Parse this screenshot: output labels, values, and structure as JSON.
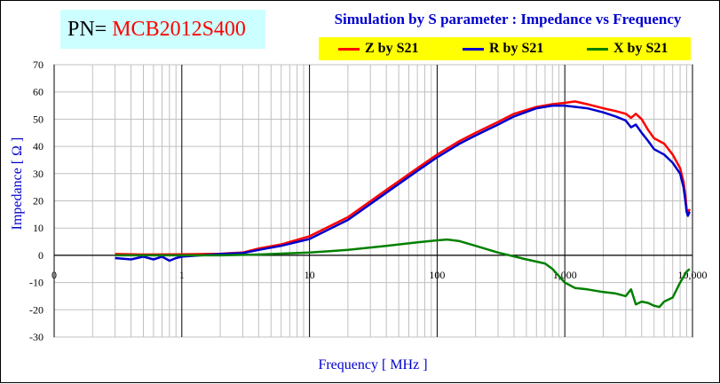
{
  "part_number": {
    "label": "PN=",
    "value": "MCB2012S400"
  },
  "chart_data": {
    "type": "line",
    "title": "Simulation by S parameter : Impedance vs Frequency",
    "xlabel": "Frequency [ MHz ]",
    "ylabel": "Impedance [ Ω ]",
    "xscale": "log",
    "xlim": [
      0.1,
      10000
    ],
    "ylim": [
      -30,
      70
    ],
    "ytick_step": 10,
    "grid": true,
    "legend_position": "top-right",
    "x_tick_labels": [
      "0",
      "1",
      "10",
      "100",
      "1,000",
      "10,000"
    ],
    "y_tick_labels": [
      "70",
      "60",
      "50",
      "40",
      "30",
      "20",
      "10",
      "0",
      "-10",
      "-20",
      "-30"
    ],
    "series": [
      {
        "name": "Z by S21",
        "color": "#ff0000",
        "points": [
          [
            0.3,
            0.5
          ],
          [
            0.5,
            0.3
          ],
          [
            1,
            0.4
          ],
          [
            2,
            0.6
          ],
          [
            3,
            1
          ],
          [
            4,
            2.5
          ],
          [
            6,
            4
          ],
          [
            10,
            7
          ],
          [
            20,
            14
          ],
          [
            40,
            24
          ],
          [
            70,
            32
          ],
          [
            100,
            37
          ],
          [
            150,
            42
          ],
          [
            200,
            45
          ],
          [
            300,
            49
          ],
          [
            400,
            52
          ],
          [
            600,
            54.5
          ],
          [
            800,
            55.5
          ],
          [
            1000,
            56
          ],
          [
            1200,
            56.5
          ],
          [
            1500,
            55.5
          ],
          [
            2000,
            54
          ],
          [
            2500,
            53
          ],
          [
            3000,
            52
          ],
          [
            3300,
            50.5
          ],
          [
            3600,
            52
          ],
          [
            4000,
            50
          ],
          [
            4500,
            46
          ],
          [
            5000,
            43
          ],
          [
            6000,
            41
          ],
          [
            7000,
            37
          ],
          [
            8000,
            32
          ],
          [
            8500,
            27
          ],
          [
            8800,
            22
          ],
          [
            9000,
            17
          ],
          [
            9200,
            15.5
          ],
          [
            9500,
            17
          ]
        ]
      },
      {
        "name": "R by S21",
        "color": "#0000cc",
        "points": [
          [
            0.3,
            -1
          ],
          [
            0.4,
            -1.5
          ],
          [
            0.5,
            -0.5
          ],
          [
            0.6,
            -1.5
          ],
          [
            0.7,
            -0.5
          ],
          [
            0.8,
            -2
          ],
          [
            0.9,
            -1
          ],
          [
            1,
            -0.5
          ],
          [
            2,
            0.5
          ],
          [
            3,
            0.8
          ],
          [
            4,
            2
          ],
          [
            6,
            3.5
          ],
          [
            10,
            6
          ],
          [
            20,
            13
          ],
          [
            40,
            23
          ],
          [
            70,
            31
          ],
          [
            100,
            36
          ],
          [
            150,
            41
          ],
          [
            200,
            44
          ],
          [
            300,
            48
          ],
          [
            400,
            51
          ],
          [
            600,
            54
          ],
          [
            800,
            55
          ],
          [
            1000,
            55
          ],
          [
            1500,
            54
          ],
          [
            2000,
            52.5
          ],
          [
            2500,
            51
          ],
          [
            3000,
            49.5
          ],
          [
            3300,
            47
          ],
          [
            3600,
            48
          ],
          [
            4000,
            45
          ],
          [
            4500,
            42
          ],
          [
            5000,
            39
          ],
          [
            6000,
            37
          ],
          [
            7000,
            34
          ],
          [
            8000,
            30
          ],
          [
            8500,
            25
          ],
          [
            8800,
            20
          ],
          [
            9000,
            16
          ],
          [
            9200,
            14.5
          ],
          [
            9500,
            16
          ]
        ]
      },
      {
        "name": "X by S21",
        "color": "#008000",
        "points": [
          [
            0.3,
            0
          ],
          [
            1,
            0
          ],
          [
            2,
            0
          ],
          [
            4,
            0.3
          ],
          [
            10,
            1
          ],
          [
            20,
            2
          ],
          [
            40,
            3.5
          ],
          [
            70,
            4.8
          ],
          [
            100,
            5.5
          ],
          [
            120,
            5.8
          ],
          [
            150,
            5.2
          ],
          [
            200,
            3.5
          ],
          [
            300,
            1
          ],
          [
            500,
            -1.5
          ],
          [
            700,
            -3
          ],
          [
            800,
            -5
          ],
          [
            1000,
            -10
          ],
          [
            1200,
            -12
          ],
          [
            1500,
            -12.5
          ],
          [
            2000,
            -13.5
          ],
          [
            2500,
            -14
          ],
          [
            3000,
            -15
          ],
          [
            3300,
            -12.5
          ],
          [
            3600,
            -18
          ],
          [
            4000,
            -17
          ],
          [
            4500,
            -17.5
          ],
          [
            5000,
            -18.5
          ],
          [
            5500,
            -19
          ],
          [
            6000,
            -17
          ],
          [
            7000,
            -15.5
          ],
          [
            8000,
            -10
          ],
          [
            9000,
            -6
          ],
          [
            9500,
            -5
          ]
        ]
      }
    ]
  },
  "colors": {
    "pn_box_bg": "#ccffff",
    "legend_bg": "#ffff00",
    "title_color": "#0000cc",
    "pn_value_color": "#ff0000"
  }
}
